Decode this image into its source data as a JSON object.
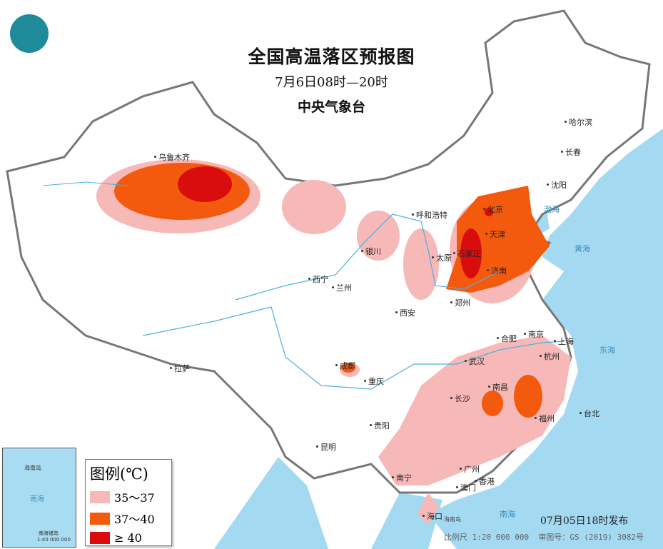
{
  "header": {
    "title": "全国高温落区预报图",
    "period": "7月6日08时—20时",
    "issuer": "中央气象台"
  },
  "logo": {
    "name": "cma-logo"
  },
  "legend": {
    "title": "图例(℃)",
    "items": [
      {
        "label": "35～37",
        "color": "#f7b8b8"
      },
      {
        "label": "37～40",
        "color": "#f45a0e"
      },
      {
        "label": "≥ 40",
        "color": "#d90d0d"
      }
    ]
  },
  "colors": {
    "sea": "#a3d9f1",
    "land": "#ffffff",
    "border": "#777777"
  },
  "cities": [
    {
      "name": "乌鲁木齐"
    },
    {
      "name": "哈尔滨"
    },
    {
      "name": "长春"
    },
    {
      "name": "沈阳"
    },
    {
      "name": "呼和浩特"
    },
    {
      "name": "北京"
    },
    {
      "name": "天津"
    },
    {
      "name": "银川"
    },
    {
      "name": "太原"
    },
    {
      "name": "石家庄"
    },
    {
      "name": "济南"
    },
    {
      "name": "西宁"
    },
    {
      "name": "兰州"
    },
    {
      "name": "郑州"
    },
    {
      "name": "西安"
    },
    {
      "name": "合肥"
    },
    {
      "name": "南京"
    },
    {
      "name": "上海"
    },
    {
      "name": "杭州"
    },
    {
      "name": "拉萨"
    },
    {
      "name": "成都"
    },
    {
      "name": "武汉"
    },
    {
      "name": "重庆"
    },
    {
      "name": "南昌"
    },
    {
      "name": "长沙"
    },
    {
      "name": "福州"
    },
    {
      "name": "台北"
    },
    {
      "name": "贵阳"
    },
    {
      "name": "昆明"
    },
    {
      "name": "南宁"
    },
    {
      "name": "广州"
    },
    {
      "name": "香港"
    },
    {
      "name": "澳门"
    },
    {
      "name": "海口"
    }
  ],
  "seas": [
    "渤海",
    "黄海",
    "东海",
    "南海",
    "海南岛"
  ],
  "inset": {
    "labels": [
      "海南岛",
      "南海",
      "南海诸岛"
    ],
    "scale": "1:40 000 000"
  },
  "footer": {
    "published": "07月05日18时发布",
    "scale": "比例尺 1:20 000 000",
    "map_no": "审图号：GS (2019) 3082号"
  }
}
